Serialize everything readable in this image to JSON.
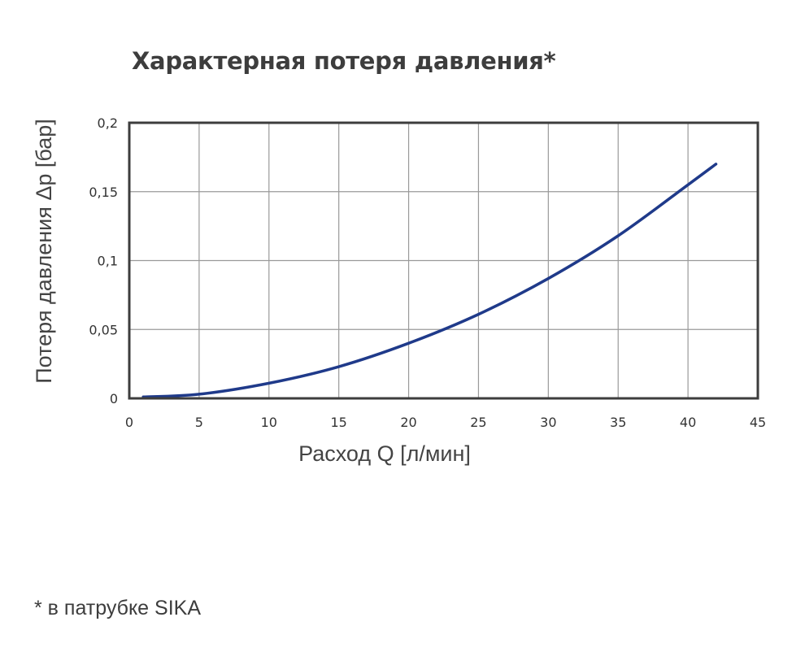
{
  "title": "Характерная потеря давления*",
  "footnote": "* в патрубке SIKA",
  "colors": {
    "line": "#1f3a8a",
    "frame": "#3d3d3d",
    "grid": "#9a9a9a",
    "text": "#3d3d3d"
  },
  "chart_data": {
    "type": "line",
    "xlabel": "Расход Q [л/мин]",
    "ylabel": "Потеря давления Δp [бар]",
    "xlim": [
      0,
      45
    ],
    "ylim": [
      0,
      0.2
    ],
    "x_ticks": [
      0,
      5,
      10,
      15,
      20,
      25,
      30,
      35,
      40,
      45
    ],
    "x_tick_labels": [
      "0",
      "5",
      "10",
      "15",
      "20",
      "25",
      "30",
      "35",
      "40",
      "45"
    ],
    "y_ticks": [
      0,
      0.05,
      0.1,
      0.15,
      0.2
    ],
    "y_tick_labels": [
      "0",
      "0,05",
      "0,1",
      "0,15",
      "0,2"
    ],
    "grid": true,
    "legend": "none",
    "series": [
      {
        "x": [
          1,
          5,
          10,
          15,
          20,
          25,
          30,
          35,
          40,
          42
        ],
        "values": [
          0.001,
          0.003,
          0.011,
          0.023,
          0.04,
          0.061,
          0.087,
          0.118,
          0.155,
          0.17
        ]
      }
    ]
  }
}
